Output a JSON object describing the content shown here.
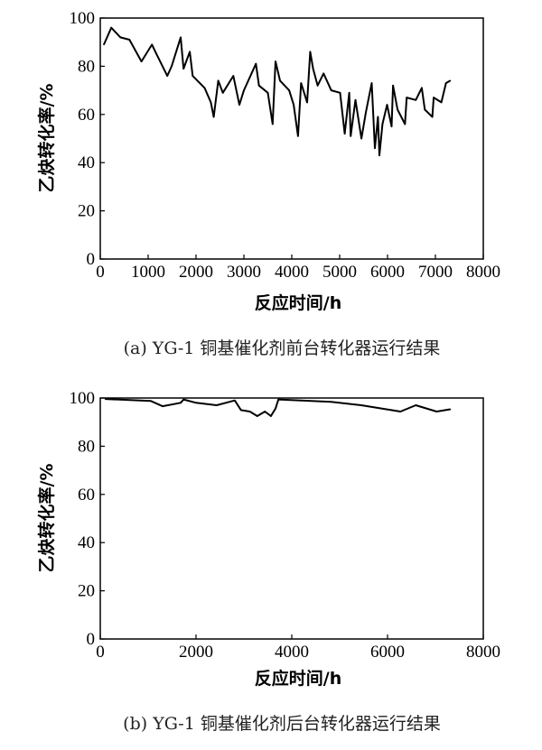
{
  "chart_data": [
    {
      "type": "line",
      "caption": "(a) YG-1 铜基催化剂前台转化器运行结果",
      "xlabel": "反应时间/h",
      "ylabel": "乙炔转化率/%",
      "xlim": [
        0,
        8000
      ],
      "ylim": [
        0,
        100
      ],
      "xticks": [
        0,
        1000,
        2000,
        3000,
        4000,
        5000,
        6000,
        7000,
        8000
      ],
      "yticks": [
        0,
        20,
        40,
        60,
        80,
        100
      ],
      "grid": false,
      "line_color": "#000000",
      "x": [
        75,
        230,
        420,
        610,
        860,
        1080,
        1175,
        1400,
        1490,
        1680,
        1740,
        1870,
        1930,
        2180,
        2310,
        2370,
        2465,
        2560,
        2780,
        2905,
        3000,
        3250,
        3315,
        3500,
        3600,
        3660,
        3755,
        3945,
        4040,
        4130,
        4195,
        4320,
        4385,
        4445,
        4540,
        4665,
        4825,
        5010,
        5105,
        5200,
        5230,
        5330,
        5455,
        5550,
        5670,
        5735,
        5800,
        5830,
        5895,
        5990,
        6085,
        6115,
        6210,
        6365,
        6400,
        6590,
        6715,
        6780,
        6935,
        6965,
        7125,
        7220,
        7310
      ],
      "y": [
        89,
        96,
        92,
        91,
        82,
        89,
        85,
        76,
        80,
        92,
        79,
        86,
        76,
        71,
        65,
        59,
        74,
        69,
        76,
        64,
        70,
        81,
        72,
        69,
        56,
        82,
        74,
        70,
        64,
        51,
        73,
        65,
        86,
        79,
        72,
        77,
        70,
        69,
        52,
        69,
        51,
        66,
        50,
        61,
        73,
        46,
        59,
        43,
        56,
        64,
        55,
        72,
        62,
        56,
        67,
        66,
        71,
        62,
        59,
        67,
        65,
        73,
        74
      ]
    },
    {
      "type": "line",
      "caption": "(b) YG-1 铜基催化剂后台转化器运行结果",
      "xlabel": "反应时间/h",
      "ylabel": "乙炔转化率/%",
      "xlim": [
        0,
        8000
      ],
      "ylim": [
        0,
        100
      ],
      "xticks": [
        0,
        2000,
        4000,
        6000,
        8000
      ],
      "yticks": [
        0,
        20,
        40,
        60,
        80,
        100
      ],
      "grid": false,
      "line_color": "#000000",
      "x": [
        107,
        1050,
        1300,
        1680,
        1740,
        2000,
        2430,
        2810,
        2940,
        3125,
        3280,
        3440,
        3565,
        3660,
        3720,
        4195,
        4825,
        5450,
        6270,
        6590,
        7025,
        7310
      ],
      "y": [
        99.6,
        98.8,
        96.6,
        98,
        99.4,
        98,
        97,
        99,
        95,
        94.4,
        92.5,
        94.4,
        92.5,
        95.6,
        99.4,
        99,
        98.4,
        97,
        94.4,
        97,
        94.4,
        95.3
      ]
    }
  ]
}
